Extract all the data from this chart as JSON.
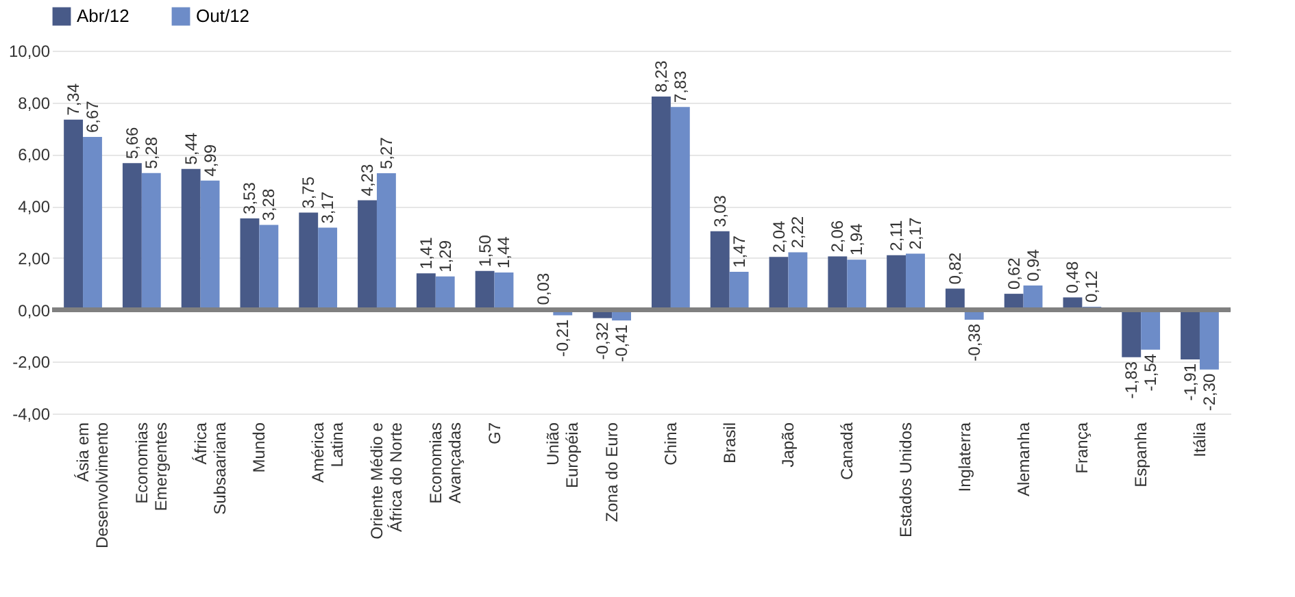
{
  "chart_data": {
    "type": "bar",
    "categories": [
      "Ásia em\nDesenvolvimento",
      "Economias\nEmergentes",
      "África\nSubsaariana",
      "Mundo",
      "América\nLatina",
      "Oriente Médio e\nÁfrica do Norte",
      "Economias\nAvançadas",
      "G7",
      "União\nEuropéia",
      "Zona do Euro",
      "China",
      "Brasil",
      "Japão",
      "Canadá",
      "Estados Unidos",
      "Inglaterra",
      "Alemanha",
      "França",
      "Espanha",
      "Itália"
    ],
    "series": [
      {
        "name": "Abr/12",
        "color": "#485a88",
        "values": [
          7.34,
          5.66,
          5.44,
          3.53,
          3.75,
          4.23,
          1.41,
          1.5,
          0.03,
          -0.32,
          8.23,
          3.03,
          2.04,
          2.06,
          2.11,
          0.82,
          0.62,
          0.48,
          -1.83,
          -1.91
        ],
        "value_labels": [
          "7,34",
          "5,66",
          "5,44",
          "3,53",
          "3,75",
          "4,23",
          "1,41",
          "1,50",
          "0,03",
          "-0,32",
          "8,23",
          "3,03",
          "2,04",
          "2,06",
          "2,11",
          "0,82",
          "0,62",
          "0,48",
          "-1,83",
          "-1,91"
        ]
      },
      {
        "name": "Out/12",
        "color": "#6d8cc8",
        "values": [
          6.67,
          5.28,
          4.99,
          3.28,
          3.17,
          5.27,
          1.29,
          1.44,
          -0.21,
          -0.41,
          7.83,
          1.47,
          2.22,
          1.94,
          2.17,
          -0.38,
          0.94,
          0.12,
          -1.54,
          -2.3
        ],
        "value_labels": [
          "6,67",
          "5,28",
          "4,99",
          "3,28",
          "3,17",
          "5,27",
          "1,29",
          "1,44",
          "-0,21",
          "-0,41",
          "7,83",
          "1,47",
          "2,22",
          "1,94",
          "2,17",
          "-0,38",
          "0,94",
          "0,12",
          "-1,54",
          "-2,30"
        ]
      }
    ],
    "ylim": [
      -4,
      10
    ],
    "yticks": [
      {
        "value": -4,
        "label": "-4,00"
      },
      {
        "value": -2,
        "label": "-2,00"
      },
      {
        "value": 0,
        "label": "0,00"
      },
      {
        "value": 2,
        "label": "2,00"
      },
      {
        "value": 4,
        "label": "4,00"
      },
      {
        "value": 6,
        "label": "6,00"
      },
      {
        "value": 8,
        "label": "8,00"
      },
      {
        "value": 10,
        "label": "10,00"
      }
    ],
    "ref_lines": [
      {
        "axis": "y",
        "value": 0,
        "color": "#808080"
      }
    ],
    "grid": "y",
    "legend": "top"
  }
}
